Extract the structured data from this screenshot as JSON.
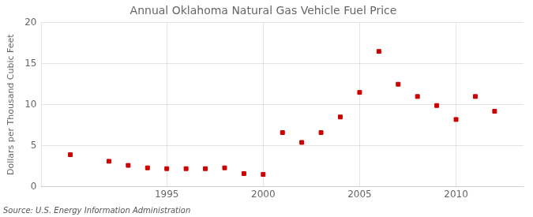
{
  "chart_data": {
    "type": "scatter",
    "title": "Annual Oklahoma Natural Gas Vehicle Fuel Price",
    "ylabel": "Dollars per Thousand Cubic Feet",
    "source": "Source: U.S. Energy Information Administration",
    "x": [
      1990,
      1992,
      1993,
      1994,
      1995,
      1996,
      1997,
      1998,
      1999,
      2000,
      2001,
      2002,
      2003,
      2004,
      2005,
      2006,
      2007,
      2008,
      2009,
      2010,
      2011,
      2012
    ],
    "values": [
      3.9,
      3.1,
      2.6,
      2.3,
      2.2,
      2.2,
      2.2,
      2.3,
      1.6,
      1.5,
      6.6,
      5.4,
      6.6,
      8.5,
      11.5,
      16.5,
      12.5,
      11.0,
      9.9,
      8.2,
      11.0,
      9.2
    ],
    "color": "#cc0000",
    "marker": "square",
    "xlim": [
      1988.5,
      2013.5
    ],
    "xticks": [
      1995,
      2000,
      2005,
      2010
    ],
    "ylim": [
      0,
      20
    ],
    "yticks": [
      0,
      5,
      10,
      15,
      20
    ],
    "grid": true
  }
}
